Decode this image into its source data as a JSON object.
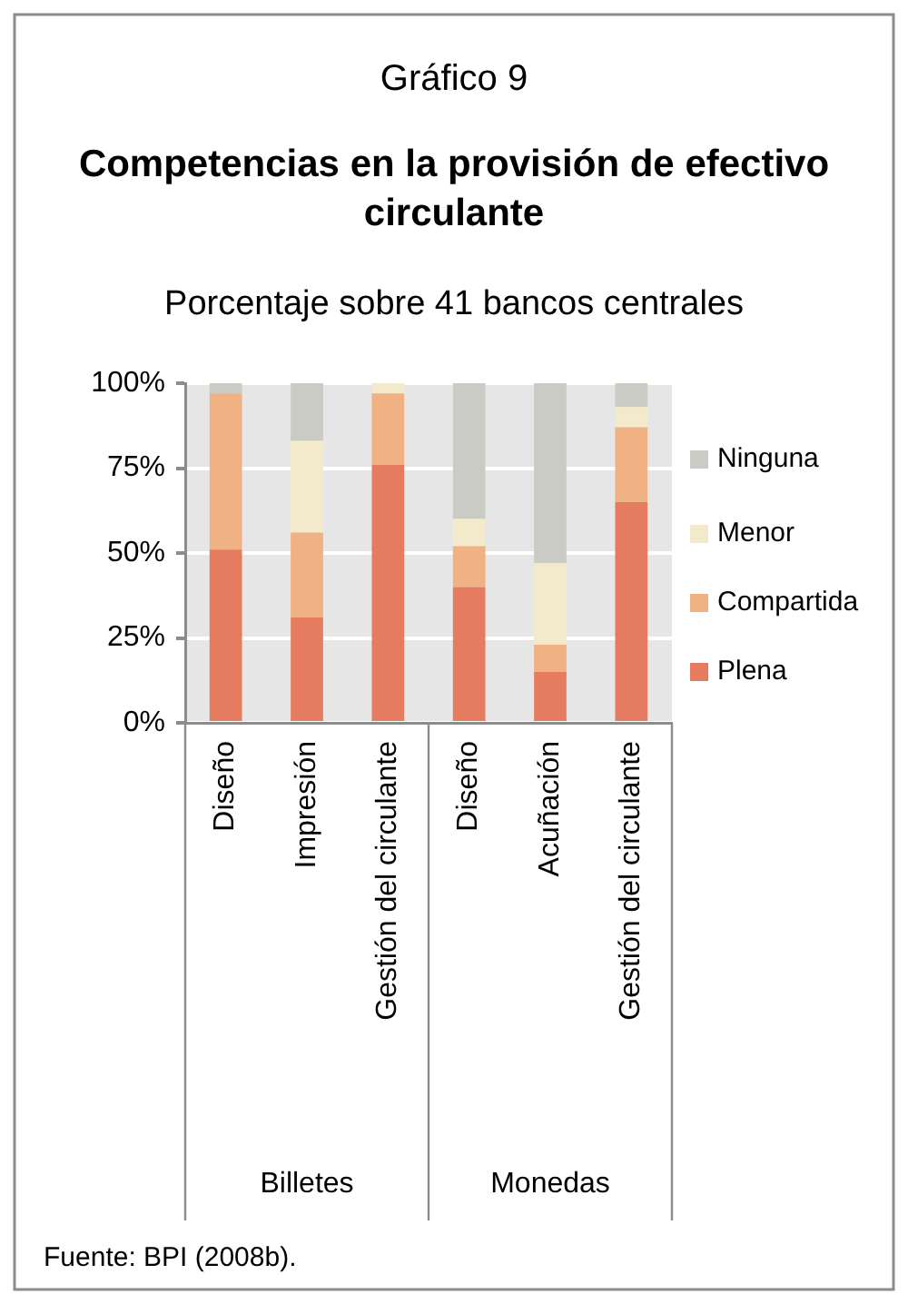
{
  "chart_data": {
    "type": "bar",
    "stacked": true,
    "title": "Competencias en la provisión de efectivo circulante",
    "subtitle": "Porcentaje sobre 41 bancos centrales",
    "annotations": [
      "Gráfico 9",
      "Billetes",
      "Monedas",
      "Fuente: BPI (2008b)."
    ],
    "categories": [
      "Diseño",
      "Impresión",
      "Gestión del circulante",
      "Diseño",
      "Acuñación",
      "Gestión del circulante"
    ],
    "series": [
      {
        "name": "Plena",
        "color": "#e57c60",
        "values": [
          51,
          31,
          76,
          40,
          15,
          65
        ]
      },
      {
        "name": "Compartida",
        "color": "#f0b183",
        "values": [
          46,
          25,
          21,
          12,
          8,
          22
        ]
      },
      {
        "name": "Menor",
        "color": "#f3eacb",
        "values": [
          0,
          27,
          3,
          8,
          24,
          6
        ]
      },
      {
        "name": "Ninguna",
        "color": "#cbcbc6",
        "values": [
          3,
          17,
          0,
          40,
          53,
          7
        ]
      }
    ],
    "ylim": [
      0,
      100
    ],
    "yticks": [
      {
        "value": 0,
        "label": "0%"
      },
      {
        "value": 25,
        "label": "25%"
      },
      {
        "value": 50,
        "label": "50%"
      },
      {
        "value": 75,
        "label": "75%"
      },
      {
        "value": 100,
        "label": "100%"
      }
    ],
    "grid": "y",
    "legend": "right"
  }
}
